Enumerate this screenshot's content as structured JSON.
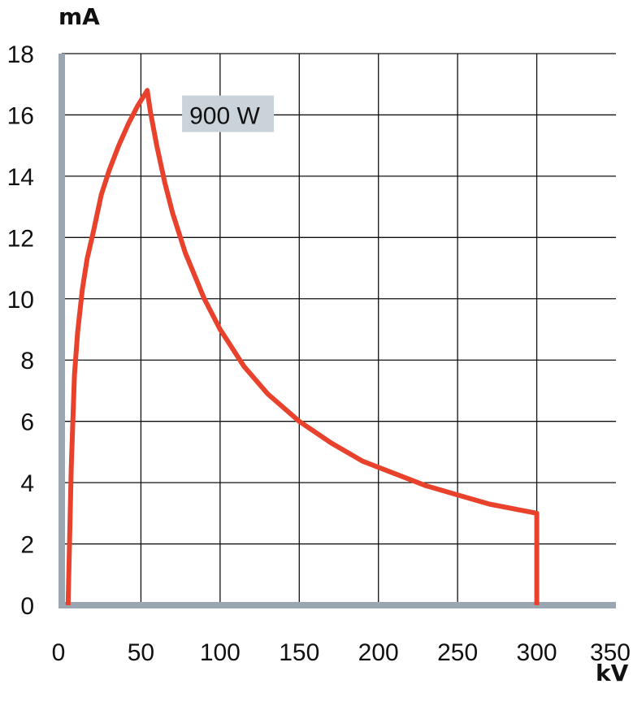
{
  "chart_data": {
    "type": "line",
    "title": "",
    "xlabel": "kV",
    "ylabel": "mA",
    "xlim": [
      0,
      350
    ],
    "ylim": [
      0,
      18
    ],
    "x_ticks": [
      "0",
      "50",
      "100",
      "150",
      "200",
      "250",
      "300",
      "350"
    ],
    "y_ticks": [
      "0",
      "2",
      "4",
      "6",
      "8",
      "10",
      "12",
      "14",
      "16",
      "18"
    ],
    "grid": true,
    "series": [
      {
        "color": "#e8412c",
        "x": [
          4,
          6,
          8,
          10,
          13,
          16,
          20,
          25,
          30,
          36,
          42,
          48,
          54,
          56,
          60,
          65,
          70,
          78,
          90,
          100,
          115,
          130,
          150,
          170,
          190,
          210,
          230,
          250,
          270,
          290,
          300,
          300
        ],
        "y": [
          0,
          4.5,
          7.5,
          8.9,
          10.3,
          11.3,
          12.2,
          13.4,
          14.2,
          15.0,
          15.7,
          16.3,
          16.8,
          16.1,
          15.0,
          13.8,
          12.8,
          11.5,
          10.0,
          9.0,
          7.8,
          6.9,
          6.0,
          5.3,
          4.7,
          4.3,
          3.9,
          3.6,
          3.3,
          3.1,
          3.0,
          0
        ]
      }
    ],
    "annotations": [
      {
        "text": "900 W",
        "x": 76,
        "y": 16.5
      }
    ],
    "colors": {
      "line": "#e8412c",
      "axis": "#9aa6b2",
      "grid": "#111111",
      "annotation_bg": "#cbd3da"
    }
  }
}
